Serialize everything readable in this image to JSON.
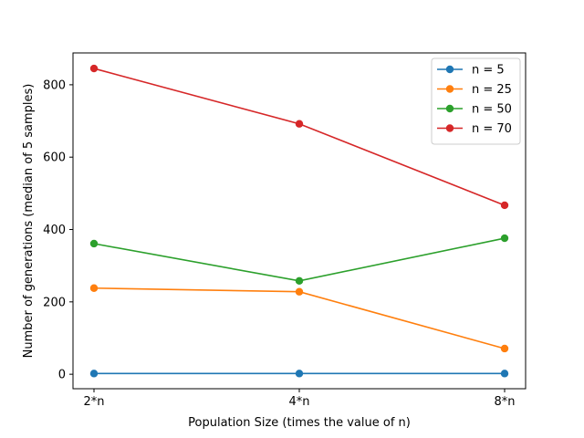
{
  "chart_data": {
    "type": "line",
    "x": [
      "2*n",
      "4*n",
      "8*n"
    ],
    "categories": [
      "2*n",
      "4*n",
      "8*n"
    ],
    "xlabel": "Population Size (times the value of n)",
    "ylabel": "Number of generations (median of 5 samples)",
    "ylim": [
      -40,
      888
    ],
    "yticks": [
      0,
      200,
      400,
      600,
      800
    ],
    "grid": false,
    "legend_position": "upper right",
    "marker": "circle",
    "series": [
      {
        "name": "n = 5",
        "color": "#1f77b4",
        "values": [
          2,
          2,
          2
        ]
      },
      {
        "name": "n = 25",
        "color": "#ff7f0e",
        "values": [
          238,
          228,
          71
        ]
      },
      {
        "name": "n = 50",
        "color": "#2ca02c",
        "values": [
          361,
          258,
          376
        ]
      },
      {
        "name": "n = 70",
        "color": "#d62728",
        "values": [
          845,
          692,
          467
        ]
      }
    ]
  }
}
